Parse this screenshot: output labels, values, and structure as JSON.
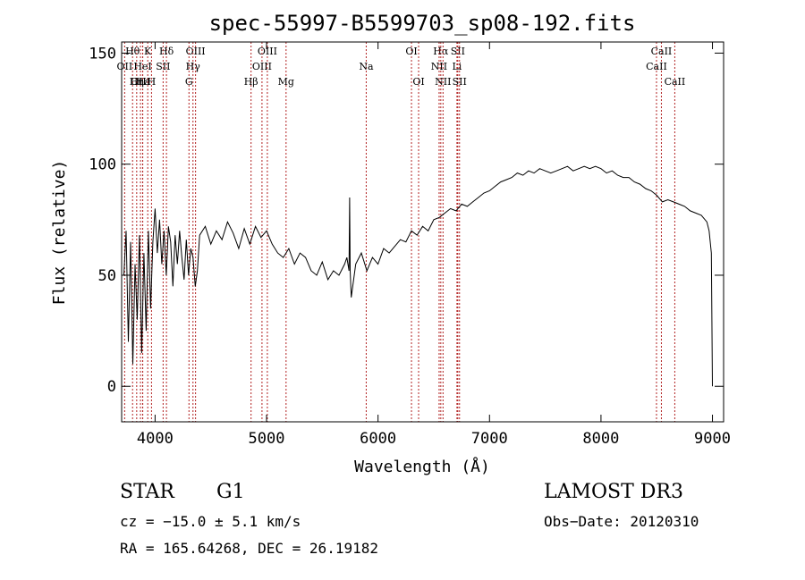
{
  "chart_data": {
    "type": "line",
    "title": "spec-55997-B5599703_sp08-192.fits",
    "xlabel": "Wavelength (Å)",
    "ylabel": "Flux (relative)",
    "xlim": [
      3700,
      9100
    ],
    "ylim": [
      -16,
      155
    ],
    "x_ticks": [
      4000,
      5000,
      6000,
      7000,
      8000,
      9000
    ],
    "y_ticks": [
      0,
      50,
      100,
      150
    ],
    "series": [
      {
        "name": "flux",
        "x": [
          3720,
          3740,
          3760,
          3780,
          3800,
          3820,
          3840,
          3860,
          3880,
          3900,
          3920,
          3940,
          3960,
          3980,
          4000,
          4020,
          4040,
          4060,
          4080,
          4100,
          4120,
          4140,
          4160,
          4180,
          4200,
          4220,
          4240,
          4260,
          4280,
          4300,
          4320,
          4340,
          4360,
          4380,
          4400,
          4450,
          4500,
          4550,
          4600,
          4650,
          4700,
          4750,
          4800,
          4850,
          4900,
          4950,
          5000,
          5050,
          5100,
          5150,
          5200,
          5250,
          5300,
          5350,
          5400,
          5450,
          5500,
          5550,
          5600,
          5650,
          5700,
          5720,
          5740,
          5745,
          5750,
          5760,
          5800,
          5850,
          5900,
          5950,
          6000,
          6050,
          6100,
          6150,
          6200,
          6250,
          6300,
          6350,
          6400,
          6450,
          6500,
          6550,
          6600,
          6650,
          6700,
          6750,
          6800,
          6850,
          6900,
          6950,
          7000,
          7050,
          7100,
          7150,
          7200,
          7250,
          7300,
          7350,
          7400,
          7450,
          7500,
          7550,
          7600,
          7650,
          7700,
          7750,
          7800,
          7850,
          7900,
          7950,
          8000,
          8050,
          8100,
          8150,
          8200,
          8250,
          8300,
          8350,
          8400,
          8450,
          8500,
          8550,
          8600,
          8650,
          8700,
          8750,
          8800,
          8850,
          8900,
          8950,
          8970,
          8990,
          9000
        ],
        "y": [
          50,
          70,
          20,
          65,
          10,
          55,
          30,
          68,
          15,
          60,
          25,
          70,
          35,
          65,
          80,
          60,
          75,
          55,
          70,
          50,
          72,
          65,
          45,
          68,
          55,
          70,
          58,
          48,
          66,
          50,
          62,
          58,
          45,
          52,
          68,
          72,
          64,
          70,
          66,
          74,
          69,
          62,
          71,
          64,
          72,
          67,
          70,
          64,
          60,
          58,
          62,
          55,
          60,
          58,
          52,
          50,
          56,
          48,
          52,
          50,
          55,
          58,
          52,
          85,
          52,
          40,
          55,
          60,
          52,
          58,
          55,
          62,
          60,
          63,
          66,
          65,
          70,
          68,
          72,
          70,
          75,
          76,
          78,
          80,
          79,
          82,
          81,
          83,
          85,
          87,
          88,
          90,
          92,
          93,
          94,
          96,
          95,
          97,
          96,
          98,
          97,
          96,
          97,
          98,
          99,
          97,
          98,
          99,
          98,
          99,
          98,
          96,
          97,
          95,
          94,
          94,
          92,
          91,
          89,
          88,
          86,
          83,
          84,
          83,
          82,
          81,
          79,
          78,
          77,
          74,
          70,
          60,
          0
        ]
      }
    ],
    "line_markers": [
      {
        "label": "Hθ",
        "x": 3798,
        "row": 0
      },
      {
        "label": "OII",
        "x": 3727,
        "row": 1
      },
      {
        "label": "OIII",
        "x": 3869,
        "row": 2
      },
      {
        "label": "Hε",
        "x": 3889,
        "row": 2
      },
      {
        "label": "HeI",
        "x": 3889,
        "row": 1
      },
      {
        "label": "Hη",
        "x": 3835,
        "row": 2
      },
      {
        "label": "K",
        "x": 3934,
        "row": 0
      },
      {
        "label": "H",
        "x": 3968,
        "row": 2
      },
      {
        "label": "Hδ",
        "x": 4102,
        "row": 0
      },
      {
        "label": "SII",
        "x": 4072,
        "row": 1
      },
      {
        "label": "OIII",
        "x": 4363,
        "row": 0
      },
      {
        "label": "Hγ",
        "x": 4340,
        "row": 1
      },
      {
        "label": "G",
        "x": 4304,
        "row": 2
      },
      {
        "label": "Hβ",
        "x": 4861,
        "row": 2
      },
      {
        "label": "OIII",
        "x": 5007,
        "row": 0
      },
      {
        "label": "OIII",
        "x": 4959,
        "row": 1
      },
      {
        "label": "Mg",
        "x": 5175,
        "row": 2
      },
      {
        "label": "Na",
        "x": 5894,
        "row": 1
      },
      {
        "label": "OI",
        "x": 6300,
        "row": 0
      },
      {
        "label": "OI",
        "x": 6364,
        "row": 2
      },
      {
        "label": "Hα",
        "x": 6563,
        "row": 0
      },
      {
        "label": "NII",
        "x": 6548,
        "row": 1
      },
      {
        "label": "NII",
        "x": 6583,
        "row": 2
      },
      {
        "label": "SII",
        "x": 6716,
        "row": 0
      },
      {
        "label": "Li",
        "x": 6708,
        "row": 1
      },
      {
        "label": "SII",
        "x": 6731,
        "row": 2
      },
      {
        "label": "CaII",
        "x": 8542,
        "row": 0
      },
      {
        "label": "CaII",
        "x": 8498,
        "row": 1
      },
      {
        "label": "CaII",
        "x": 8662,
        "row": 2
      }
    ],
    "annotation_colors": {
      "marker_line": "#b22222",
      "spectrum": "#000000"
    }
  },
  "info": {
    "object_class": "STAR",
    "subclass": "G1",
    "survey": "LAMOST DR3",
    "redshift": "cz = −15.0 ± 5.1 km/s",
    "obs_date": "Obs−Date: 20120310",
    "coords": "RA = 165.64268, DEC =  26.19182"
  }
}
